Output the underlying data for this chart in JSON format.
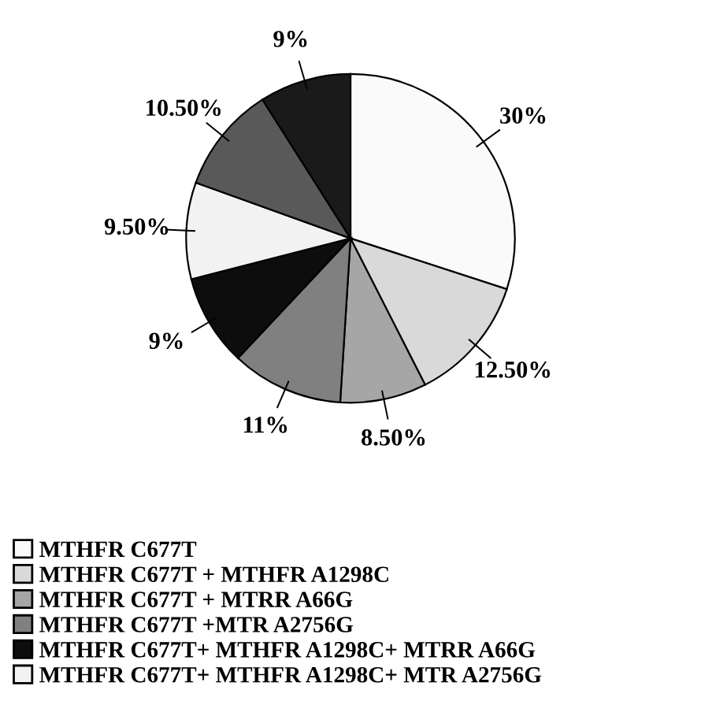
{
  "chart_data": {
    "type": "pie",
    "categories": [
      "MTHFR C677T",
      "MTHFR C677T + MTHFR A1298C",
      "MTHFR C677T + MTRR A66G",
      "MTHFR C677T +MTR A2756G",
      "MTHFR C677T+ MTHFR A1298C+ MTRR A66G",
      "MTHFR C677T+ MTHFR A1298C+ MTR A2756G",
      null,
      null
    ],
    "values": [
      30,
      12.5,
      8.5,
      11,
      9,
      9.5,
      10.5,
      9
    ],
    "value_labels": [
      "30%",
      "12.50%",
      "8.50%",
      "11%",
      "9%",
      "9.50%",
      "10.50%",
      "9%"
    ],
    "colors": [
      "#fafafa",
      "#d9d9d9",
      "#a6a6a6",
      "#808080",
      "#0d0d0d",
      "#f2f2f2",
      "#595959",
      "#1a1a1a"
    ],
    "legend": "bottom"
  }
}
